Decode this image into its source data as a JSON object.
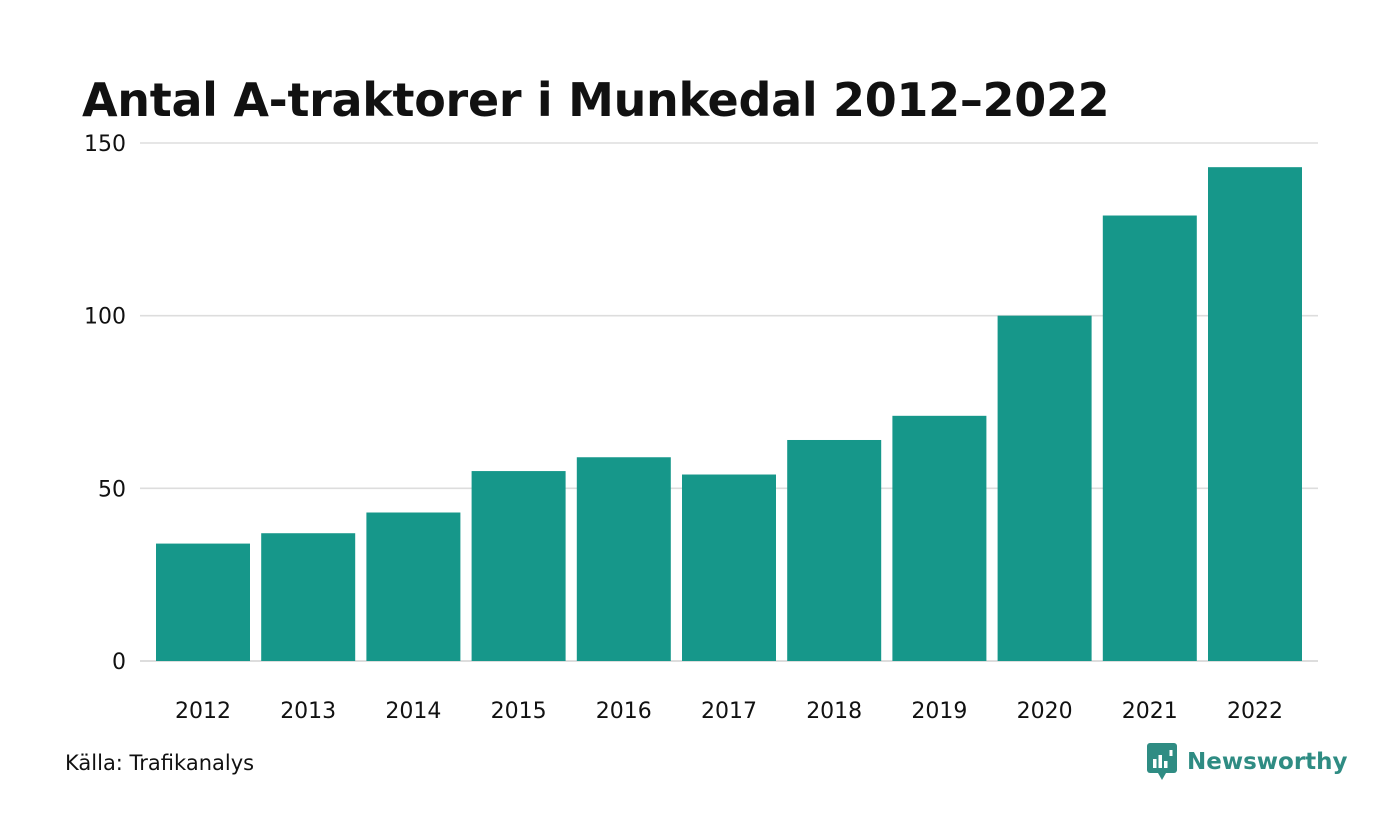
{
  "chart_data": {
    "type": "bar",
    "title": "Antal A-traktorer i Munkedal 2012–2022",
    "categories": [
      "2012",
      "2013",
      "2014",
      "2015",
      "2016",
      "2017",
      "2018",
      "2019",
      "2020",
      "2021",
      "2022"
    ],
    "values": [
      34,
      37,
      43,
      55,
      59,
      54,
      64,
      71,
      100,
      129,
      143
    ],
    "xlabel": "",
    "ylabel": "",
    "ylim": [
      0,
      150
    ],
    "yticks": [
      "0",
      "50",
      "100",
      "150"
    ],
    "grid": true,
    "bar_color": "#16978a",
    "grid_color": "#dddddd"
  },
  "footer": {
    "source": "Källa: Trafikanalys",
    "brand": "Newsworthy",
    "brand_icon": "newsworthy-logo-icon",
    "brand_color": "#2f8c83"
  }
}
